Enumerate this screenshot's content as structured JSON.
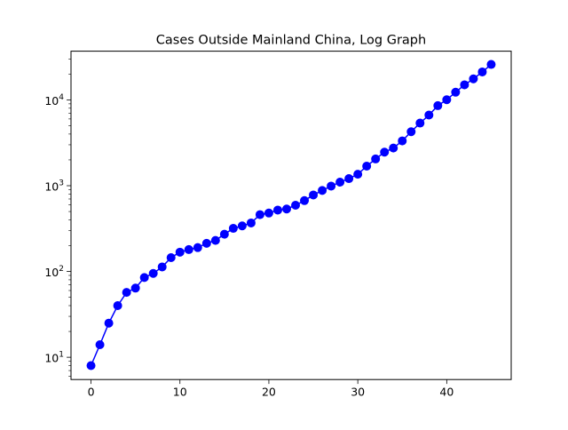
{
  "chart_data": {
    "type": "line",
    "title": "Cases Outside Mainland China, Log Graph",
    "xlabel": "",
    "ylabel": "",
    "xlim": [
      -2.25,
      47.25
    ],
    "ylim": [
      5.5,
      37000
    ],
    "yscale": "log",
    "x_ticks": [
      0,
      10,
      20,
      30,
      40
    ],
    "x_tick_labels": [
      "0",
      "10",
      "20",
      "30",
      "40"
    ],
    "y_ticks": [
      10,
      100,
      1000,
      10000
    ],
    "y_tick_labels": [
      {
        "base": "10",
        "exp": "1"
      },
      {
        "base": "10",
        "exp": "2"
      },
      {
        "base": "10",
        "exp": "3"
      },
      {
        "base": "10",
        "exp": "4"
      }
    ],
    "grid": false,
    "series": [
      {
        "color": "#0000ff",
        "marker": "circle",
        "x": [
          0,
          1,
          2,
          3,
          4,
          5,
          6,
          7,
          8,
          9,
          10,
          11,
          12,
          13,
          14,
          15,
          16,
          17,
          18,
          19,
          20,
          21,
          22,
          23,
          24,
          25,
          26,
          27,
          28,
          29,
          30,
          31,
          32,
          33,
          34,
          35,
          36,
          37,
          38,
          39,
          40,
          41,
          42,
          43,
          44,
          45
        ],
        "values": [
          8,
          14,
          25,
          40,
          57,
          64,
          85,
          95,
          113,
          145,
          168,
          180,
          190,
          213,
          230,
          272,
          318,
          340,
          368,
          460,
          480,
          520,
          535,
          592,
          670,
          780,
          880,
          990,
          1100,
          1210,
          1360,
          1690,
          2050,
          2460,
          2750,
          3330,
          4260,
          5370,
          6660,
          8570,
          10050,
          12300,
          15000,
          17600,
          21200,
          25900
        ]
      }
    ]
  }
}
